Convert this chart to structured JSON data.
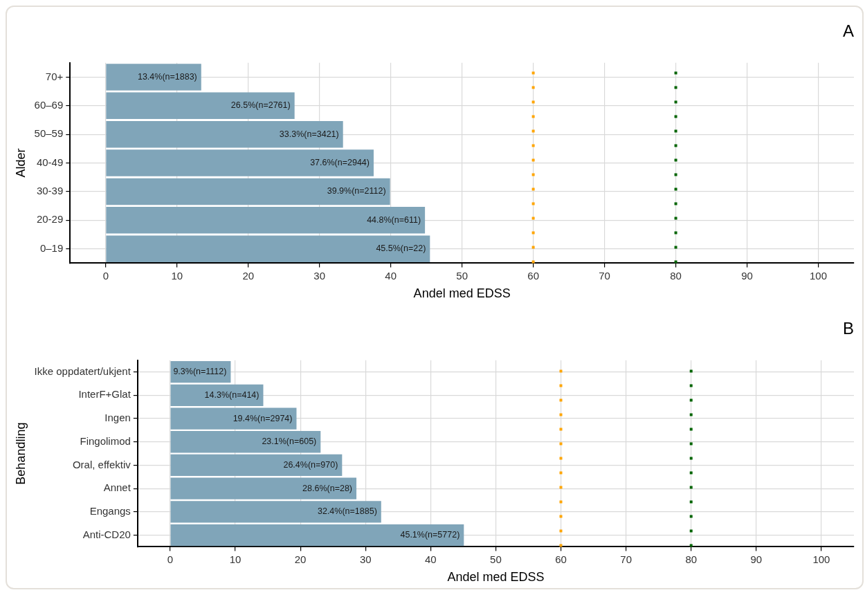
{
  "chart_data": [
    {
      "type": "bar",
      "orientation": "horizontal",
      "title": "A",
      "xlabel": "Andel med EDSS",
      "ylabel": "Alder",
      "categories": [
        "70+",
        "60–69",
        "50–59",
        "40-49",
        "30-39",
        "20-29",
        "0–19"
      ],
      "values": [
        13.4,
        26.5,
        33.3,
        37.6,
        39.9,
        44.8,
        45.5
      ],
      "color": "#80a5b9",
      "value_labels": [
        "13.4%(n=1883)",
        "26.5%(n=2761)",
        "33.3%(n=3421)",
        "37.6%(n=2944)",
        "39.9%(n=2112)",
        "44.8%(n=611)",
        "45.5%(n=22)"
      ],
      "xlim": [
        -5,
        105
      ],
      "xticks": [
        0,
        10,
        20,
        30,
        40,
        50,
        60,
        70,
        80,
        90,
        100
      ],
      "grid": true,
      "ref_lines": [
        {
          "axis": "x",
          "value": 60,
          "color": "#ffa500",
          "line_style": "dotted"
        },
        {
          "axis": "x",
          "value": 80,
          "color": "#006400",
          "line_style": "dotted"
        }
      ]
    },
    {
      "type": "bar",
      "orientation": "horizontal",
      "title": "B",
      "xlabel": "Andel med EDSS",
      "ylabel": "Behandling",
      "categories": [
        "Ikke oppdatert/ukjent",
        "InterF+Glat",
        "Ingen",
        "Fingolimod",
        "Oral, effektiv",
        "Annet",
        "Engangs",
        "Anti-CD20"
      ],
      "values": [
        9.3,
        14.3,
        19.4,
        23.1,
        26.4,
        28.6,
        32.4,
        45.1
      ],
      "color": "#80a5b9",
      "value_labels": [
        "9.3%(n=1112)",
        "14.3%(n=414)",
        "19.4%(n=2974)",
        "23.1%(n=605)",
        "26.4%(n=970)",
        "28.6%(n=28)",
        "32.4%(n=1885)",
        "45.1%(n=5772)"
      ],
      "xlim": [
        -5,
        105
      ],
      "xticks": [
        0,
        10,
        20,
        30,
        40,
        50,
        60,
        70,
        80,
        90,
        100
      ],
      "grid": true,
      "ref_lines": [
        {
          "axis": "x",
          "value": 60,
          "color": "#ffa500",
          "line_style": "dotted"
        },
        {
          "axis": "x",
          "value": 80,
          "color": "#006400",
          "line_style": "dotted"
        }
      ]
    }
  ]
}
